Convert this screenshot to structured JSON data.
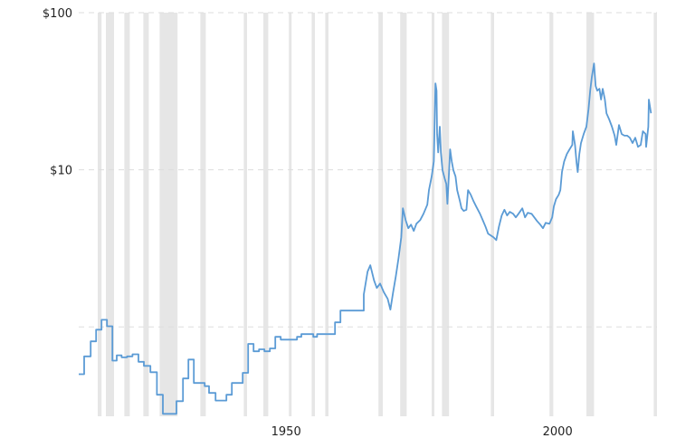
{
  "chart_data": {
    "type": "line",
    "title": "",
    "xlabel": "",
    "ylabel": "",
    "y_scale": "log",
    "xlim": [
      1911.8,
      2018.3
    ],
    "ylim": [
      0.27,
      100
    ],
    "grid": {
      "horizontal": true,
      "style": "dashed"
    },
    "y_gridlines": [
      100,
      10,
      1
    ],
    "y_ticks": [
      {
        "value": 100,
        "label": "$100"
      },
      {
        "value": 10,
        "label": "$10"
      }
    ],
    "x_ticks": [
      {
        "value": 1950,
        "label": "1950"
      },
      {
        "value": 2000,
        "label": "2000"
      }
    ],
    "colors": {
      "line": "#5b9bd5",
      "shaded_band": "#e6e6e6",
      "grid": "#dddddd"
    },
    "shaded_periods": [
      [
        1915.3,
        1916.0
      ],
      [
        1916.8,
        1918.3
      ],
      [
        1920.2,
        1921.2
      ],
      [
        1923.7,
        1924.7
      ],
      [
        1926.7,
        1930.0
      ],
      [
        1934.2,
        1935.2
      ],
      [
        1942.2,
        1942.8
      ],
      [
        1945.8,
        1946.7
      ],
      [
        1950.5,
        1951.0
      ],
      [
        1954.7,
        1955.3
      ],
      [
        1957.2,
        1957.8
      ],
      [
        1967.0,
        1967.8
      ],
      [
        1971.0,
        1972.2
      ],
      [
        1976.8,
        1977.2
      ],
      [
        1978.7,
        1980.0
      ],
      [
        1987.7,
        1988.3
      ],
      [
        1998.5,
        1999.2
      ],
      [
        2005.3,
        2006.7
      ],
      [
        2017.7,
        2018.3
      ]
    ],
    "series": [
      {
        "points": [
          [
            1911.8,
            0.5
          ],
          [
            1912.8,
            0.5
          ],
          [
            1912.8,
            0.65
          ],
          [
            1914,
            0.65
          ],
          [
            1914,
            0.81
          ],
          [
            1915,
            0.81
          ],
          [
            1915,
            0.96
          ],
          [
            1916,
            0.96
          ],
          [
            1916,
            1.11
          ],
          [
            1917,
            1.11
          ],
          [
            1917,
            1.01
          ],
          [
            1918,
            1.01
          ],
          [
            1918,
            0.61
          ],
          [
            1918.8,
            0.61
          ],
          [
            1918.8,
            0.66
          ],
          [
            1919.7,
            0.66
          ],
          [
            1919.7,
            0.64
          ],
          [
            1920.7,
            0.64
          ],
          [
            1920.7,
            0.65
          ],
          [
            1921.7,
            0.65
          ],
          [
            1921.7,
            0.67
          ],
          [
            1922.8,
            0.67
          ],
          [
            1922.8,
            0.6
          ],
          [
            1923.8,
            0.6
          ],
          [
            1923.8,
            0.565
          ],
          [
            1925,
            0.565
          ],
          [
            1925,
            0.515
          ],
          [
            1926.2,
            0.515
          ],
          [
            1926.2,
            0.37
          ],
          [
            1927.3,
            0.37
          ],
          [
            1927.3,
            0.28
          ],
          [
            1929.8,
            0.28
          ],
          [
            1929.8,
            0.337
          ],
          [
            1931,
            0.337
          ],
          [
            1931,
            0.47
          ],
          [
            1932,
            0.47
          ],
          [
            1932,
            0.62
          ],
          [
            1933,
            0.62
          ],
          [
            1933,
            0.44
          ],
          [
            1935,
            0.44
          ],
          [
            1935,
            0.42
          ],
          [
            1935.8,
            0.42
          ],
          [
            1935.8,
            0.38
          ],
          [
            1937,
            0.38
          ],
          [
            1937,
            0.34
          ],
          [
            1939,
            0.34
          ],
          [
            1939,
            0.37
          ],
          [
            1940,
            0.37
          ],
          [
            1940,
            0.44
          ],
          [
            1942,
            0.44
          ],
          [
            1942,
            0.51
          ],
          [
            1943,
            0.51
          ],
          [
            1943,
            0.78
          ],
          [
            1944,
            0.78
          ],
          [
            1944,
            0.7
          ],
          [
            1945,
            0.7
          ],
          [
            1945,
            0.72
          ],
          [
            1946,
            0.72
          ],
          [
            1946,
            0.7
          ],
          [
            1947,
            0.7
          ],
          [
            1947,
            0.73
          ],
          [
            1948,
            0.73
          ],
          [
            1948,
            0.865
          ],
          [
            1949,
            0.865
          ],
          [
            1949,
            0.83
          ],
          [
            1952,
            0.83
          ],
          [
            1952,
            0.865
          ],
          [
            1952.8,
            0.865
          ],
          [
            1952.8,
            0.9
          ],
          [
            1955,
            0.9
          ],
          [
            1955,
            0.865
          ],
          [
            1955.7,
            0.865
          ],
          [
            1955.7,
            0.9
          ],
          [
            1959,
            0.9
          ],
          [
            1959,
            1.07
          ],
          [
            1960,
            1.07
          ],
          [
            1960,
            1.27
          ],
          [
            1964.3,
            1.27
          ],
          [
            1964.3,
            1.61
          ],
          [
            1965,
            2.25
          ],
          [
            1965.5,
            2.47
          ],
          [
            1966.2,
            1.97
          ],
          [
            1966.7,
            1.77
          ],
          [
            1967.3,
            1.89
          ],
          [
            1968,
            1.66
          ],
          [
            1968.7,
            1.51
          ],
          [
            1969.2,
            1.29
          ],
          [
            1969.7,
            1.66
          ],
          [
            1970.2,
            2.1
          ],
          [
            1970.7,
            2.74
          ],
          [
            1971.2,
            3.72
          ],
          [
            1971.5,
            5.69
          ],
          [
            1972,
            4.79
          ],
          [
            1972.5,
            4.25
          ],
          [
            1973,
            4.48
          ],
          [
            1973.5,
            4.08
          ],
          [
            1974,
            4.54
          ],
          [
            1974.7,
            4.79
          ],
          [
            1975.3,
            5.25
          ],
          [
            1976,
            6.0
          ],
          [
            1976.3,
            7.42
          ],
          [
            1976.8,
            9.06
          ],
          [
            1977.2,
            11.3
          ],
          [
            1977.3,
            16.5
          ],
          [
            1977.5,
            35.5
          ],
          [
            1977.7,
            31.9
          ],
          [
            1977.8,
            16.9
          ],
          [
            1978,
            12.9
          ],
          [
            1978.3,
            18.8
          ],
          [
            1978.5,
            12.9
          ],
          [
            1978.8,
            9.94
          ],
          [
            1979.2,
            8.81
          ],
          [
            1979.5,
            8.14
          ],
          [
            1979.7,
            6.08
          ],
          [
            1980,
            9.68
          ],
          [
            1980.2,
            13.5
          ],
          [
            1980.5,
            11.3
          ],
          [
            1980.8,
            9.94
          ],
          [
            1981.2,
            9.06
          ],
          [
            1981.5,
            7.42
          ],
          [
            1982,
            6.32
          ],
          [
            1982.3,
            5.69
          ],
          [
            1982.7,
            5.47
          ],
          [
            1983.2,
            5.57
          ],
          [
            1983.5,
            7.42
          ],
          [
            1984,
            6.94
          ],
          [
            1984.5,
            6.32
          ],
          [
            1985,
            5.84
          ],
          [
            1985.7,
            5.25
          ],
          [
            1986.2,
            4.79
          ],
          [
            1986.7,
            4.36
          ],
          [
            1987.2,
            3.92
          ],
          [
            1987.7,
            3.82
          ],
          [
            1988.2,
            3.72
          ],
          [
            1988.7,
            3.57
          ],
          [
            1989.2,
            4.36
          ],
          [
            1989.7,
            5.12
          ],
          [
            1990.2,
            5.57
          ],
          [
            1990.7,
            5.12
          ],
          [
            1991.2,
            5.4
          ],
          [
            1991.8,
            5.25
          ],
          [
            1992.3,
            4.98
          ],
          [
            1992.8,
            5.25
          ],
          [
            1993.5,
            5.69
          ],
          [
            1994,
            4.98
          ],
          [
            1994.5,
            5.33
          ],
          [
            1995.2,
            5.25
          ],
          [
            1995.7,
            4.98
          ],
          [
            1996.2,
            4.72
          ],
          [
            1996.8,
            4.48
          ],
          [
            1997.3,
            4.25
          ],
          [
            1997.8,
            4.6
          ],
          [
            1998.5,
            4.54
          ],
          [
            1999,
            4.98
          ],
          [
            1999.3,
            5.84
          ],
          [
            1999.7,
            6.5
          ],
          [
            2000.2,
            6.94
          ],
          [
            2000.5,
            7.42
          ],
          [
            2000.8,
            9.68
          ],
          [
            2001.2,
            11.3
          ],
          [
            2001.7,
            12.6
          ],
          [
            2002.2,
            13.5
          ],
          [
            2002.7,
            14.4
          ],
          [
            2002.8,
            17.6
          ],
          [
            2003.2,
            14.4
          ],
          [
            2003.5,
            11.0
          ],
          [
            2003.7,
            9.68
          ],
          [
            2004,
            12.6
          ],
          [
            2004.3,
            14.8
          ],
          [
            2004.8,
            16.9
          ],
          [
            2005.3,
            18.8
          ],
          [
            2005.7,
            24.5
          ],
          [
            2006,
            31.9
          ],
          [
            2006.3,
            39.0
          ],
          [
            2006.7,
            47.5
          ],
          [
            2007,
            34.1
          ],
          [
            2007.3,
            31.9
          ],
          [
            2007.7,
            32.8
          ],
          [
            2008,
            28.0
          ],
          [
            2008.3,
            32.8
          ],
          [
            2008.7,
            28.0
          ],
          [
            2009,
            22.9
          ],
          [
            2009.5,
            20.9
          ],
          [
            2010,
            18.8
          ],
          [
            2010.5,
            16.5
          ],
          [
            2010.8,
            14.4
          ],
          [
            2011.3,
            19.3
          ],
          [
            2011.8,
            16.9
          ],
          [
            2012.3,
            16.5
          ],
          [
            2012.8,
            16.5
          ],
          [
            2013.3,
            16.0
          ],
          [
            2013.8,
            14.8
          ],
          [
            2014.3,
            16.0
          ],
          [
            2014.8,
            14.0
          ],
          [
            2015.3,
            14.4
          ],
          [
            2015.7,
            17.6
          ],
          [
            2016.2,
            16.9
          ],
          [
            2016.3,
            14.0
          ],
          [
            2016.7,
            18.8
          ],
          [
            2016.8,
            28.0
          ],
          [
            2017.2,
            22.9
          ]
        ]
      }
    ]
  }
}
